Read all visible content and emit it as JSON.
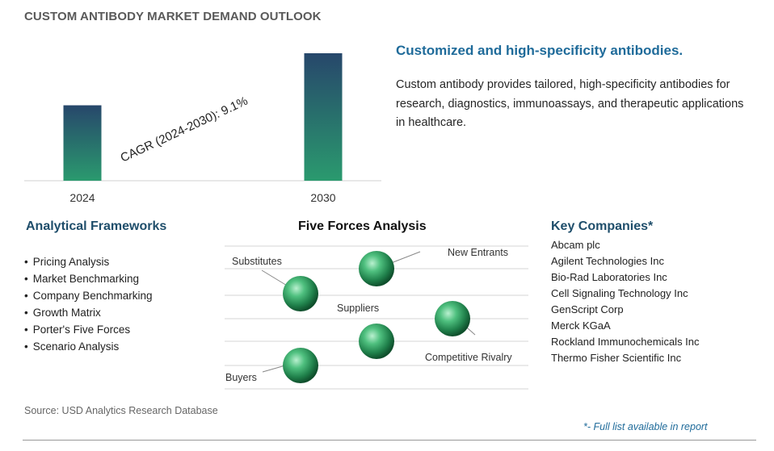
{
  "title": "CUSTOM ANTIBODY MARKET DEMAND OUTLOOK",
  "chart_data": {
    "type": "bar",
    "categories": [
      "2024",
      "2030"
    ],
    "values": [
      1.0,
      1.69
    ],
    "annotation": "CAGR (2024-2030):  9.1%",
    "colors": {
      "bar_top": "#27476b",
      "bar_bottom": "#2a9a6e"
    }
  },
  "headline": "Customized and high-specificity antibodies.",
  "description": "Custom antibody provides tailored, high-specificity antibodies for research, diagnostics, immunoassays, and therapeutic applications in healthcare.",
  "frameworks": {
    "title": "Analytical Frameworks",
    "items": [
      "Pricing Analysis",
      "Market Benchmarking",
      "Company Benchmarking",
      "Growth Matrix",
      "Porter's Five Forces",
      "Scenario Analysis"
    ]
  },
  "five_forces": {
    "title": "Five Forces Analysis",
    "labels": [
      "Substitutes",
      "New Entrants",
      "Suppliers",
      "Competitive Rivalry",
      "Buyers"
    ]
  },
  "companies": {
    "title": "Key Companies*",
    "items": [
      "Abcam plc",
      "Agilent Technologies Inc",
      "Bio-Rad Laboratories Inc",
      "Cell Signaling Technology Inc",
      "GenScript Corp",
      "Merck KGaA",
      "Rockland Immunochemicals Inc",
      "Thermo Fisher Scientific Inc"
    ]
  },
  "source": "Source: USD Analytics Research Database",
  "footnote": "*- Full list available in report"
}
